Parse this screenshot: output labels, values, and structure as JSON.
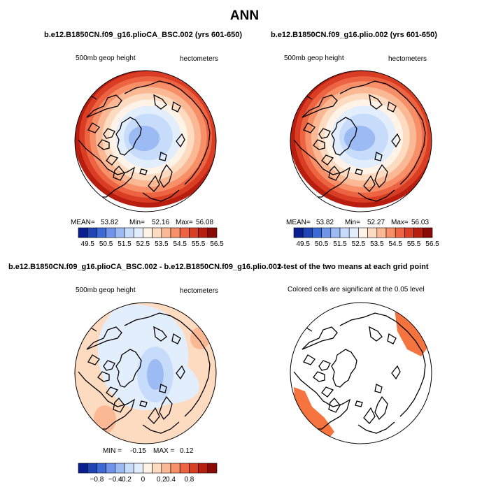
{
  "figure": {
    "title": "ANN"
  },
  "chart_data": [
    {
      "type": "heatmap",
      "projection": "north-polar-stereographic",
      "title": "b.e12.B1850CN.f09_g16.plioCA_BSC.002 (yrs 601-650)",
      "left_label": "500mb geop height",
      "right_label": "hectometers",
      "stats": {
        "mean_label": "MEAN=",
        "mean": "53.82",
        "min_label": "Min=",
        "min": "52.16",
        "max_label": "Max=",
        "max": "56.08"
      },
      "colorbar": {
        "colors": [
          "#0a1f8f",
          "#1f45b5",
          "#3c6ad6",
          "#6f94e8",
          "#9cbaf3",
          "#c7dcfa",
          "#e3eefd",
          "#fff2e6",
          "#fddbc0",
          "#fbb895",
          "#f78f68",
          "#ed6442",
          "#d93e24",
          "#b81e10",
          "#8a0a05"
        ],
        "tick_labels": [
          "49.5",
          "50.5",
          "51.5",
          "52.5",
          "53.5",
          "54.5",
          "55.5",
          "56.5"
        ]
      },
      "grid": false
    },
    {
      "type": "heatmap",
      "projection": "north-polar-stereographic",
      "title": "b.e12.B1850CN.f09_g16.plio.002 (yrs 601-650)",
      "left_label": "500mb geop height",
      "right_label": "hectometers",
      "stats": {
        "mean_label": "MEAN=",
        "mean": "53.82",
        "min_label": "Min=",
        "min": "52.27",
        "max_label": "Max=",
        "max": "56.03"
      },
      "colorbar": {
        "colors": [
          "#0a1f8f",
          "#1f45b5",
          "#3c6ad6",
          "#6f94e8",
          "#9cbaf3",
          "#c7dcfa",
          "#e3eefd",
          "#fff2e6",
          "#fddbc0",
          "#fbb895",
          "#f78f68",
          "#ed6442",
          "#d93e24",
          "#b81e10",
          "#8a0a05"
        ],
        "tick_labels": [
          "49.5",
          "50.5",
          "51.5",
          "52.5",
          "53.5",
          "54.5",
          "55.5",
          "56.5"
        ]
      },
      "grid": false
    },
    {
      "type": "heatmap",
      "projection": "north-polar-stereographic",
      "title": "b.e12.B1850CN.f09_g16.plioCA_BSC.002 - b.e12.B1850CN.f09_g16.plio.002",
      "left_label": "500mb geop height",
      "right_label": "hectometers",
      "stats": {
        "min_label": "MIN =",
        "min": "-0.15",
        "max_label": "MAX =",
        "max": "0.12"
      },
      "colorbar": {
        "colors": [
          "#0a1f8f",
          "#1f45b5",
          "#3c6ad6",
          "#6f94e8",
          "#9cbaf3",
          "#c7dcfa",
          "#e3eefd",
          "#fff2e6",
          "#fddbc0",
          "#fbb895",
          "#f78f68",
          "#ed6442",
          "#d93e24",
          "#b81e10",
          "#8a0a05"
        ],
        "tick_labels": [
          "−0.8",
          "−0.4",
          "−0.2",
          "0",
          "0.2",
          "0.4",
          "0.8"
        ]
      },
      "grid": false
    },
    {
      "type": "heatmap",
      "projection": "north-polar-stereographic",
      "title": "t-test of the two means at each grid point",
      "left_label": "Colored cells are significant at the 0.05 level",
      "significant_color": "#f4733f",
      "grid": false
    }
  ]
}
